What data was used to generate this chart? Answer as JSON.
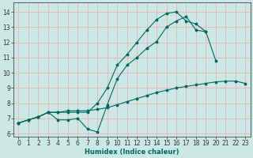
{
  "xlabel": "Humidex (Indice chaleur)",
  "background_color": "#cce8e4",
  "grid_color": "#e8b8b8",
  "line_color": "#006860",
  "xlim": [
    -0.5,
    23.5
  ],
  "ylim": [
    5.8,
    14.6
  ],
  "yticks": [
    6,
    7,
    8,
    9,
    10,
    11,
    12,
    13,
    14
  ],
  "xticks": [
    0,
    1,
    2,
    3,
    4,
    5,
    6,
    7,
    8,
    9,
    10,
    11,
    12,
    13,
    14,
    15,
    16,
    17,
    18,
    19,
    20,
    21,
    22,
    23
  ],
  "line1_x": [
    0,
    1,
    2,
    3,
    4,
    5,
    6,
    7,
    8,
    9,
    10,
    11,
    12,
    13,
    14,
    15,
    16,
    17,
    18,
    19,
    20,
    21,
    22,
    23
  ],
  "line1_y": [
    6.7,
    6.9,
    7.1,
    7.4,
    7.4,
    7.5,
    7.5,
    7.5,
    7.6,
    7.7,
    7.9,
    8.1,
    8.3,
    8.5,
    8.7,
    8.85,
    9.0,
    9.1,
    9.2,
    9.3,
    9.4,
    9.45,
    9.45,
    9.3
  ],
  "line2_x": [
    0,
    1,
    2,
    3,
    4,
    5,
    6,
    7,
    8,
    9,
    10,
    11,
    12,
    13,
    14,
    15,
    16,
    17,
    18,
    19,
    20,
    21,
    22,
    23
  ],
  "line2_y": [
    6.7,
    6.9,
    7.1,
    7.4,
    6.9,
    6.9,
    7.0,
    6.3,
    6.1,
    7.9,
    9.6,
    10.5,
    11.0,
    11.6,
    12.05,
    13.0,
    13.4,
    13.7,
    12.8,
    12.7,
    10.8,
    null,
    null,
    null
  ],
  "line3_x": [
    0,
    1,
    2,
    3,
    4,
    5,
    6,
    7,
    8,
    9,
    10,
    11,
    12,
    13,
    14,
    15,
    16,
    17,
    18,
    19,
    20,
    21,
    22,
    23
  ],
  "line3_y": [
    6.7,
    6.9,
    7.1,
    7.4,
    7.4,
    7.4,
    7.4,
    7.4,
    8.0,
    9.0,
    10.5,
    11.2,
    12.0,
    12.8,
    13.5,
    13.9,
    14.0,
    13.4,
    13.2,
    12.7,
    null,
    null,
    null,
    null
  ],
  "xlabel_fontsize": 6.0,
  "tick_fontsize": 5.5
}
